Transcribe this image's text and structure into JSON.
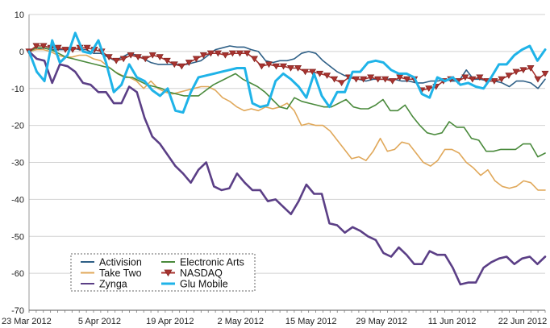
{
  "chart_data": {
    "type": "line",
    "title": "",
    "xlabel": "",
    "ylabel": "",
    "ylim": [
      -70,
      10
    ],
    "y_ticks": [
      10,
      0,
      -10,
      -20,
      -30,
      -40,
      -50,
      -60,
      -70
    ],
    "x_tick_labels": [
      "23 Mar 2012",
      "5 Apr 2012",
      "19 Apr 2012",
      "2 May 2012",
      "15 May 2012",
      "29 May 2012",
      "11 Jun 2012",
      "22 Jun 2012"
    ],
    "grid": "horizontal",
    "legend_position": "lower-left",
    "x_type": "trading-day index",
    "series": [
      {
        "name": "Activision",
        "color": "#2e5f86",
        "marker": "none",
        "values": [
          0,
          0.5,
          1,
          0.5,
          0.5,
          0.5,
          1,
          0.5,
          0.5,
          -0.5,
          -0.5,
          -1.5,
          -2.5,
          -1.5,
          -0.5,
          -1,
          -2,
          -3,
          -3.5,
          -3.5,
          -3.5,
          -3.5,
          -3.5,
          -3,
          -2.5,
          -1,
          0.5,
          1,
          1.5,
          1.2,
          1.2,
          0.5,
          0,
          -2.5,
          -3,
          -2.5,
          -2.5,
          -2,
          -0.5,
          0,
          -0.5,
          -2.5,
          -4,
          -5.5,
          -6.5,
          -7,
          -7.5,
          -8,
          -7.5,
          -7.5,
          -7.5,
          -7.5,
          -8,
          -8,
          -8.5,
          -8.5,
          -8,
          -8,
          -7.5,
          -8,
          -8,
          -5,
          -7.5,
          -7.5,
          -8,
          -8,
          -8.5,
          -9.5,
          -8,
          -8,
          -8.5,
          -10,
          -7.5
        ]
      },
      {
        "name": "Take Two",
        "color": "#e0a85a",
        "marker": "none",
        "values": [
          0,
          0.5,
          0.5,
          0,
          -1,
          -1.5,
          -1.5,
          -1,
          -1,
          -2,
          -2.5,
          -4,
          -5.5,
          -6.5,
          -7,
          -8,
          -10,
          -8,
          -10,
          -11,
          -11.5,
          -11,
          -10.5,
          -10,
          -9.5,
          -9.5,
          -10.5,
          -12.5,
          -13.5,
          -15,
          -16,
          -15.5,
          -16,
          -15,
          -15.5,
          -15,
          -14,
          -16,
          -20,
          -19.5,
          -20,
          -20,
          -21.5,
          -24,
          -26.5,
          -29,
          -28.5,
          -29.5,
          -27,
          -23.5,
          -27,
          -26.5,
          -24.5,
          -25,
          -27.5,
          -30,
          -31,
          -29.5,
          -26.5,
          -26.5,
          -27.5,
          -30,
          -31.5,
          -33.5,
          -32,
          -35,
          -36.5,
          -37,
          -36.5,
          -35,
          -35.5,
          -37.5,
          -37.5
        ]
      },
      {
        "name": "Zynga",
        "color": "#5b3f86",
        "marker": "none",
        "values": [
          0,
          -2,
          -2.5,
          -8.5,
          -3.5,
          -4,
          -5.5,
          -8.5,
          -9,
          -11,
          -11,
          -14,
          -14,
          -9.5,
          -11,
          -18,
          -23,
          -25,
          -28,
          -31,
          -33,
          -35.5,
          -32,
          -30,
          -36.5,
          -37.5,
          -37,
          -33,
          -35.5,
          -37.5,
          -37.5,
          -40.5,
          -40,
          -42,
          -44,
          -40.5,
          -36,
          -38.5,
          -38.5,
          -46.5,
          -47,
          -49,
          -47.5,
          -48.5,
          -50,
          -51,
          -54.5,
          -55.5,
          -53,
          -55,
          -57.5,
          -57.5,
          -54,
          -55,
          -55,
          -58.5,
          -63,
          -62.5,
          -62.5,
          -58.5,
          -57,
          -56,
          -55.5,
          -57.5,
          -56,
          -55.5,
          -57.5,
          -55.5
        ]
      },
      {
        "name": "Electronic Arts",
        "color": "#4a8a3c",
        "marker": "none",
        "values": [
          0,
          1,
          1,
          0.5,
          -0.5,
          -1.5,
          -2,
          -2.5,
          -3,
          -3.5,
          -4,
          -4.5,
          -6,
          -7,
          -7,
          -8,
          -9,
          -9.5,
          -10,
          -11,
          -11.5,
          -12,
          -12,
          -12,
          -10.5,
          -9,
          -8,
          -7,
          -6,
          -7.5,
          -8.5,
          -9.5,
          -11,
          -13,
          -15,
          -15.5,
          -12.5,
          -13.5,
          -14,
          -14.5,
          -15,
          -15,
          -14,
          -13,
          -15,
          -15.5,
          -15.5,
          -14.5,
          -13,
          -16,
          -16,
          -14.5,
          -17.5,
          -20,
          -22,
          -22.5,
          -22,
          -19,
          -20.5,
          -20.5,
          -23.5,
          -24,
          -27,
          -27,
          -26.5,
          -26.5,
          -26.5,
          -25,
          -25,
          -28.5,
          -27.5
        ]
      },
      {
        "name": "NASDAQ",
        "color": "#a8332f",
        "marker": "triangle-down",
        "values": [
          0,
          1.5,
          1.5,
          1,
          1,
          0.5,
          0.5,
          1,
          1,
          0.5,
          0,
          -1.5,
          -2.5,
          -2,
          -1,
          -1.5,
          -2,
          -1,
          -1.5,
          -2.5,
          -3.5,
          -4,
          -3,
          -2,
          -1,
          -0.5,
          -0.5,
          -1,
          -0.5,
          -0.5,
          -0.5,
          -2,
          -4,
          -3.5,
          -4,
          -4,
          -4.5,
          -4.5,
          -5.5,
          -5.5,
          -6,
          -6.5,
          -7.5,
          -8.5,
          -7,
          -7.5,
          -7.5,
          -7,
          -7.5,
          -7.5,
          -8,
          -7,
          -7.5,
          -7.5,
          -10.5,
          -10,
          -9.5,
          -8,
          -7.5,
          -8,
          -7,
          -7.5,
          -7,
          -8,
          -8,
          -7.5,
          -6.5,
          -5.5,
          -5,
          -4.5,
          -7.5,
          -6
        ]
      },
      {
        "name": "Glu Mobile",
        "color": "#1fb3e8",
        "marker": "none",
        "values": [
          0,
          -5.5,
          -8,
          3,
          -3,
          -1,
          5,
          0,
          -0.5,
          3,
          -3,
          -11,
          -9,
          -3.5,
          -7,
          -8,
          -10.5,
          -12,
          -10,
          -16,
          -16.5,
          -11,
          -7,
          -6.5,
          -6,
          -5.5,
          -5,
          -4.5,
          -4.5,
          -14,
          -15,
          -14.5,
          -8,
          -6,
          -7.5,
          -9.5,
          -12.5,
          -6,
          -12,
          -15,
          -11,
          -11,
          -5.5,
          -5.5,
          -3,
          -2.5,
          -3,
          -5,
          -6,
          -6,
          -7,
          -11.5,
          -12.5,
          -7,
          -8,
          -7,
          -9,
          -8.5,
          -9.5,
          -10,
          -7,
          -3.5,
          -3.5,
          -1,
          0.5,
          1.5,
          -2.5,
          0.5
        ]
      }
    ]
  },
  "legend": [
    {
      "label": "Activision",
      "color": "#2e5f86",
      "marker": "none"
    },
    {
      "label": "Electronic Arts",
      "color": "#4a8a3c",
      "marker": "none"
    },
    {
      "label": "Take Two",
      "color": "#e0a85a",
      "marker": "none"
    },
    {
      "label": "NASDAQ",
      "color": "#a8332f",
      "marker": "triangle-down"
    },
    {
      "label": "Zynga",
      "color": "#5b3f86",
      "marker": "none"
    },
    {
      "label": "Glu Mobile",
      "color": "#1fb3e8",
      "marker": "none"
    }
  ]
}
